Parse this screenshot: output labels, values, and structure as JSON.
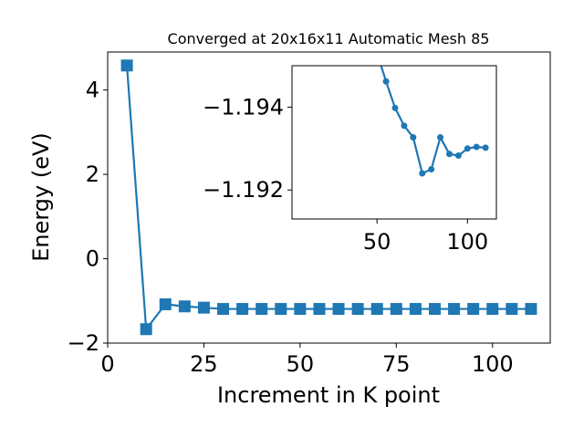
{
  "chart_data": [
    {
      "type": "line",
      "title": "Converged at 20x16x11 Automatic Mesh 85",
      "xlabel": "Increment in K point",
      "ylabel": "Energy (eV)",
      "xlim": [
        0,
        115
      ],
      "ylim": [
        -2,
        4.9
      ],
      "xticks": [
        0,
        25,
        50,
        75,
        100
      ],
      "yticks": [
        -2,
        0,
        2,
        4
      ],
      "marker": "square",
      "color": "#1f77b4",
      "series": [
        {
          "x": [
            5,
            10,
            15,
            20,
            25,
            30,
            35,
            40,
            45,
            50,
            55,
            60,
            65,
            70,
            75,
            80,
            85,
            90,
            95,
            100,
            105,
            110
          ],
          "values": [
            4.58,
            -1.67,
            -1.08,
            -1.13,
            -1.16,
            -1.19,
            -1.19,
            -1.19,
            -1.19,
            -1.19,
            -1.19,
            -1.19,
            -1.19,
            -1.19,
            -1.19,
            -1.19,
            -1.19,
            -1.19,
            -1.19,
            -1.19,
            -1.19,
            -1.19
          ]
        }
      ]
    },
    {
      "type": "line",
      "title": "",
      "xlabel": "",
      "ylabel": "",
      "xlim": [
        3,
        116
      ],
      "ylim": [
        -1.1913,
        -1.195
      ],
      "xticks": [
        50,
        100
      ],
      "yticks": [
        -1.194,
        -1.192
      ],
      "ytick_labels": [
        "−1.194",
        "−1.192"
      ],
      "marker": "circle",
      "color": "#1f77b4",
      "series": [
        {
          "x": [
            45,
            55,
            60,
            65,
            70,
            75,
            80,
            85,
            90,
            95,
            100,
            105,
            110
          ],
          "values": [
            -1.196,
            -1.19462,
            -1.19398,
            -1.19355,
            -1.19327,
            -1.1924,
            -1.1925,
            -1.19327,
            -1.19287,
            -1.19283,
            -1.193,
            -1.19304,
            -1.19302
          ]
        }
      ]
    }
  ]
}
